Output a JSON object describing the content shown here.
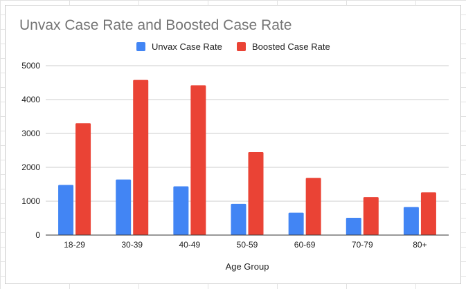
{
  "chart_data": {
    "type": "bar",
    "title": "Unvax Case Rate and Boosted Case Rate",
    "xlabel": "Age Group",
    "ylabel": "",
    "ylim": [
      0,
      5000
    ],
    "yticks": [
      0,
      1000,
      2000,
      3000,
      4000,
      5000
    ],
    "grid": true,
    "legend": "top",
    "categories": [
      "18-29",
      "30-39",
      "40-49",
      "50-59",
      "60-69",
      "70-79",
      "80+"
    ],
    "series": [
      {
        "name": "Unvax Case Rate",
        "color": "#4285f4",
        "values": [
          1480,
          1640,
          1440,
          920,
          660,
          510,
          830
        ]
      },
      {
        "name": "Boosted Case Rate",
        "color": "#ea4335",
        "values": [
          3300,
          4580,
          4420,
          2450,
          1690,
          1120,
          1260
        ]
      }
    ]
  }
}
